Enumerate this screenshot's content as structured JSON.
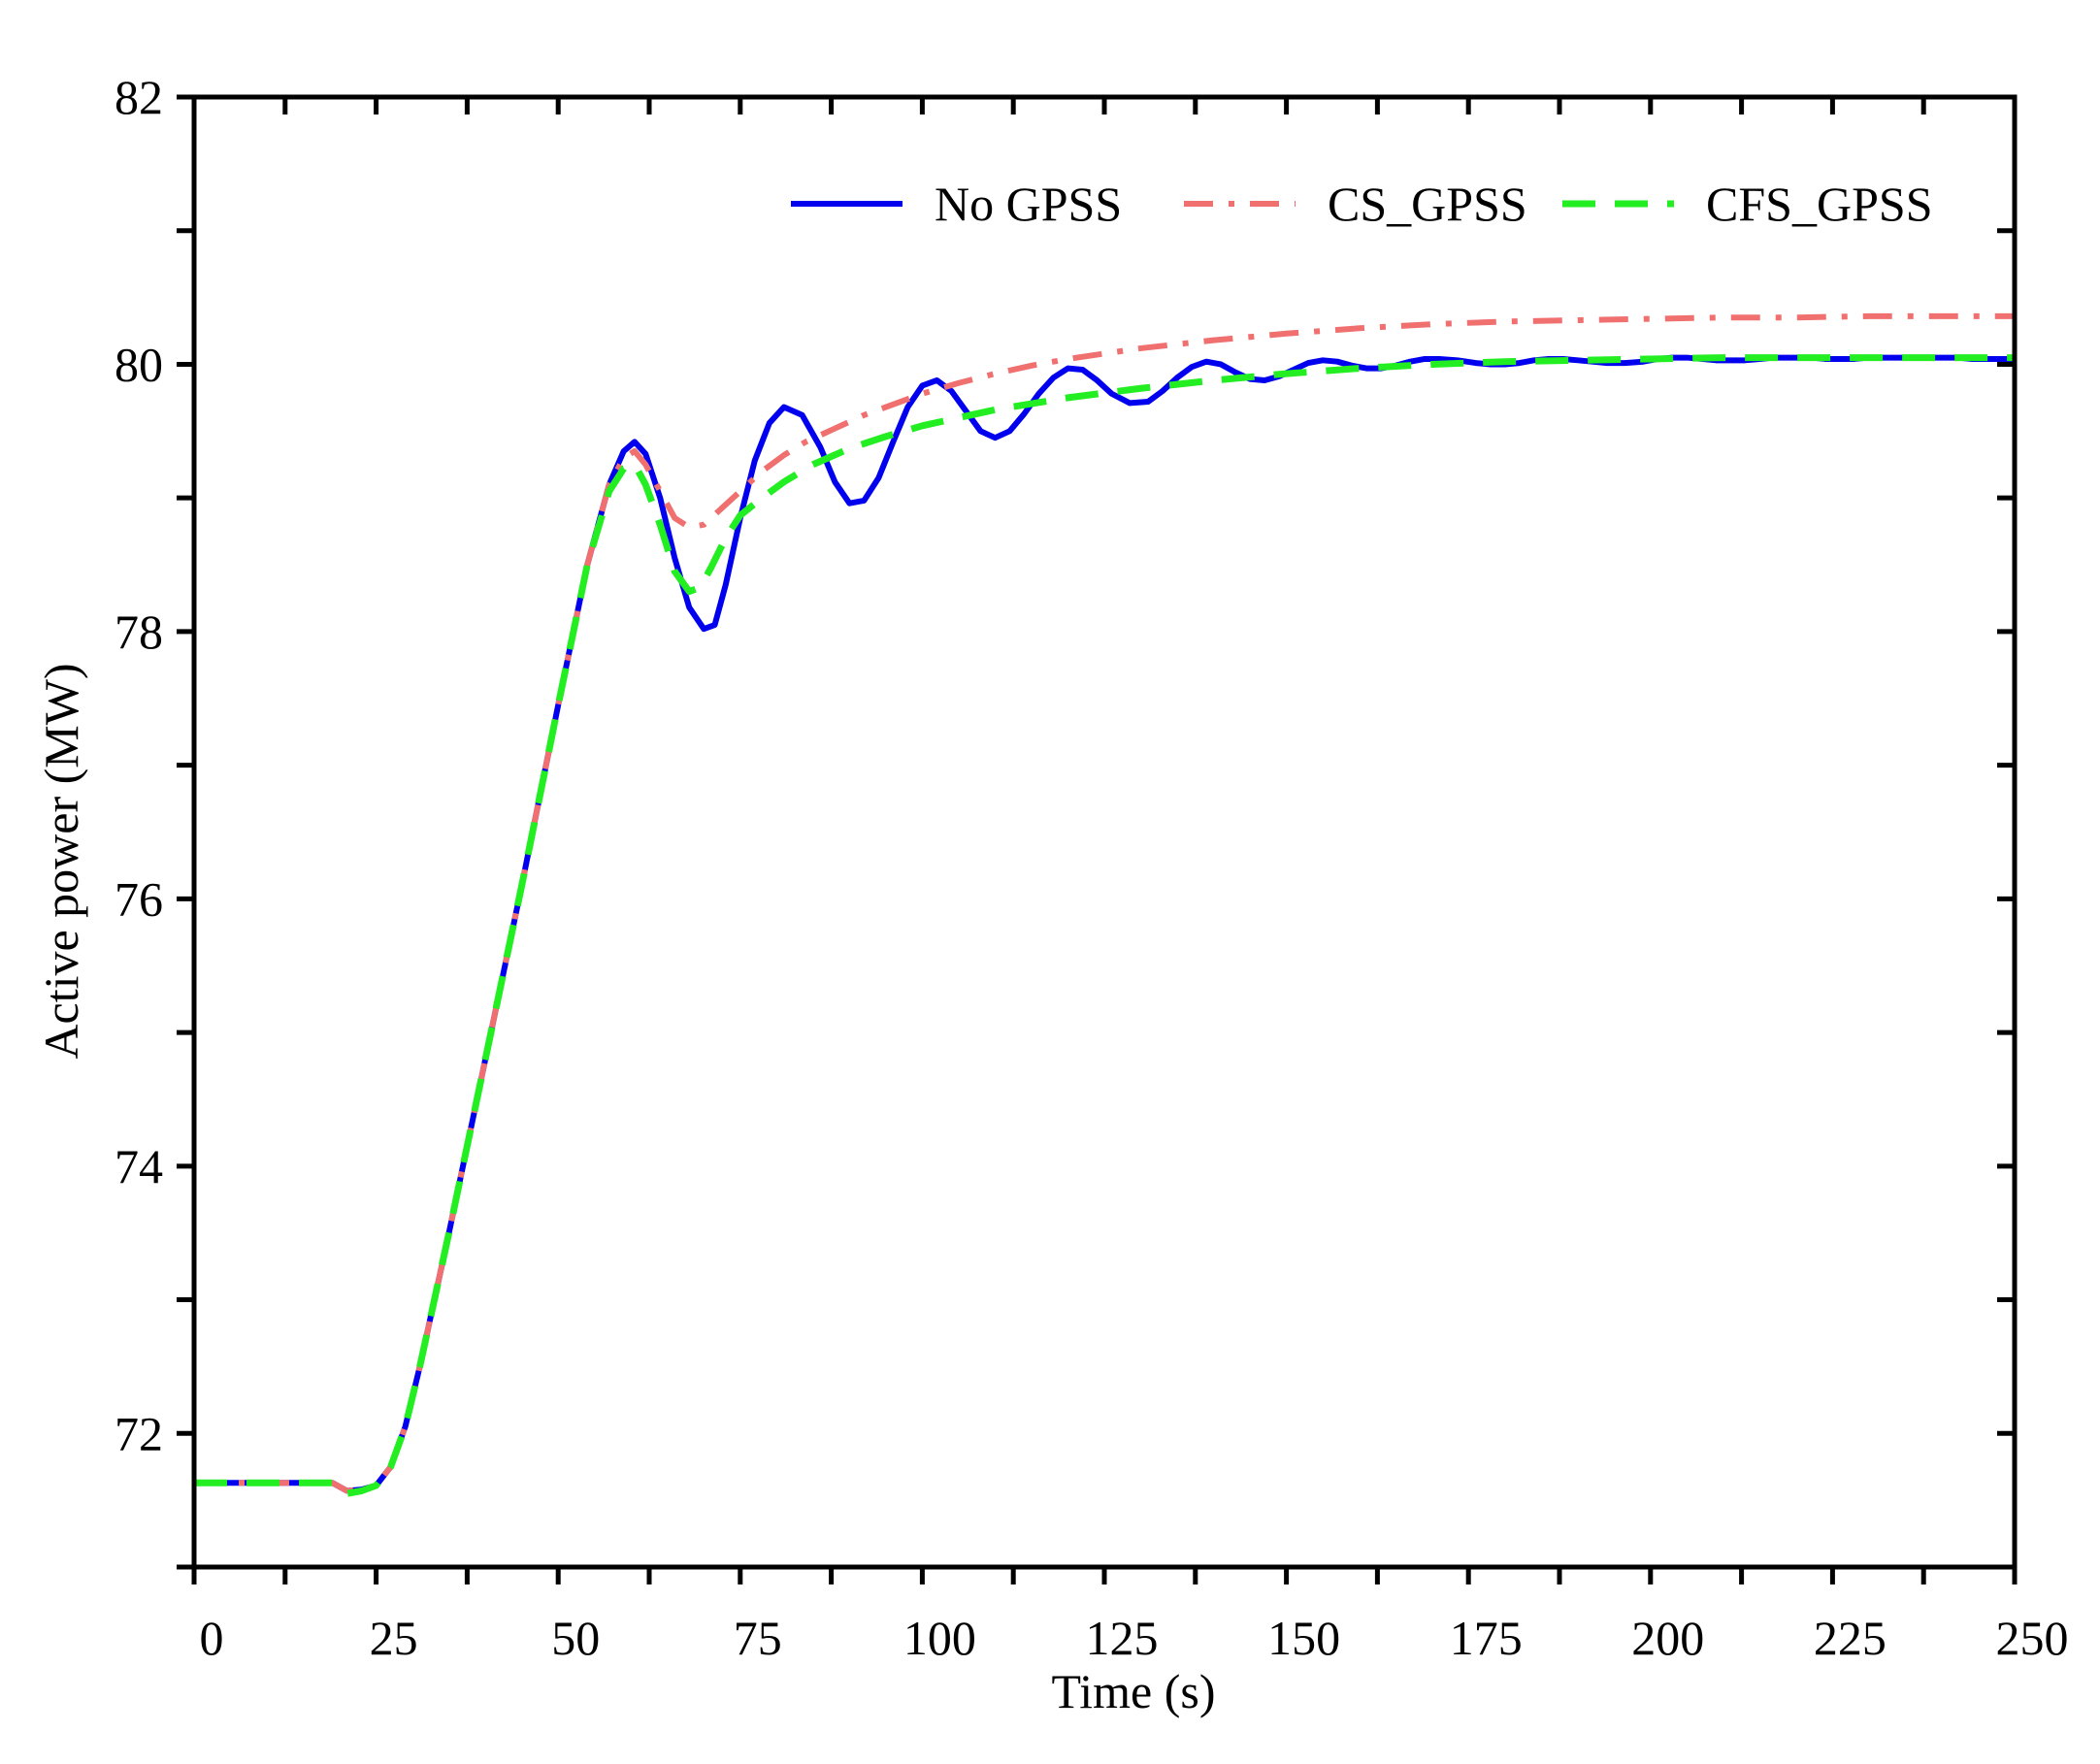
{
  "chart_data": {
    "type": "line",
    "title": "",
    "xlabel": "Time (s)",
    "ylabel": "Active power (MW)",
    "xlim": [
      0,
      250
    ],
    "ylim": [
      71,
      82
    ],
    "xticks": [
      0,
      25,
      50,
      75,
      100,
      125,
      150,
      175,
      200,
      225,
      250
    ],
    "xtick_labels": [
      "0",
      "25",
      "50",
      "75",
      "100",
      "125",
      "150",
      "175",
      "200",
      "225",
      "250"
    ],
    "yticks": [
      72,
      74,
      76,
      78,
      80,
      82
    ],
    "ytick_labels": [
      "72",
      "74",
      "76",
      "78",
      "80",
      "82"
    ],
    "grid": false,
    "legend_position": "top-right",
    "series": [
      {
        "name": "No GPSS",
        "color": "#0000ee",
        "style": "solid",
        "x": [
          0,
          19,
          20,
          21,
          23,
          25,
          27,
          29,
          31,
          35,
          40,
          45,
          50,
          54,
          57,
          59,
          60.5,
          62,
          64,
          66,
          68,
          70,
          71.5,
          73,
          75,
          77,
          79,
          81,
          83.5,
          86,
          88,
          90,
          92,
          94,
          96,
          98,
          100,
          102,
          104,
          106,
          108,
          110,
          112,
          114,
          116,
          118,
          120,
          122,
          124,
          126,
          128.5,
          131,
          133,
          135,
          137,
          139,
          141,
          143,
          145,
          147,
          149,
          151,
          153,
          155,
          157,
          159,
          161,
          163,
          165,
          167,
          169,
          171,
          173.5,
          176,
          178,
          180,
          182,
          184,
          186,
          188,
          190,
          192,
          194,
          196.5,
          199,
          201,
          203,
          205,
          207,
          209,
          211,
          213,
          215,
          217,
          219.5,
          222,
          224,
          226,
          228,
          230,
          232,
          234,
          236,
          238,
          240,
          242,
          244,
          246,
          248,
          250
        ],
        "y": [
          71.63,
          71.63,
          71.6,
          71.57,
          71.58,
          71.61,
          71.75,
          72.05,
          72.5,
          73.5,
          74.8,
          76.1,
          77.45,
          78.5,
          79.1,
          79.35,
          79.42,
          79.33,
          79.0,
          78.55,
          78.18,
          78.02,
          78.05,
          78.35,
          78.85,
          79.28,
          79.56,
          79.68,
          79.62,
          79.38,
          79.12,
          78.96,
          78.98,
          79.15,
          79.42,
          79.68,
          79.84,
          79.88,
          79.8,
          79.65,
          79.5,
          79.45,
          79.5,
          79.63,
          79.78,
          79.9,
          79.97,
          79.96,
          79.88,
          79.78,
          79.71,
          79.72,
          79.8,
          79.9,
          79.98,
          80.02,
          80.0,
          79.94,
          79.89,
          79.88,
          79.91,
          79.96,
          80.01,
          80.03,
          80.02,
          79.99,
          79.97,
          79.97,
          79.99,
          80.02,
          80.04,
          80.04,
          80.03,
          80.01,
          80.0,
          80.0,
          80.01,
          80.03,
          80.04,
          80.04,
          80.03,
          80.02,
          80.01,
          80.01,
          80.02,
          80.04,
          80.05,
          80.05,
          80.04,
          80.03,
          80.03,
          80.03,
          80.04,
          80.05,
          80.05,
          80.05,
          80.04,
          80.04,
          80.04,
          80.05,
          80.05,
          80.05,
          80.05,
          80.05,
          80.05,
          80.05,
          80.04,
          80.04,
          80.04,
          80.04
        ]
      },
      {
        "name": "CS_GPSS",
        "color": "#f07070",
        "style": "dashdot",
        "x": [
          0,
          19,
          20,
          21,
          23,
          25,
          27,
          29,
          31,
          35,
          40,
          45,
          50,
          54,
          57,
          59,
          60.5,
          62,
          64,
          66,
          68,
          70,
          72,
          75,
          78,
          81,
          84,
          88,
          92,
          96,
          100,
          105,
          110,
          115,
          120,
          125,
          130,
          140,
          150,
          160,
          170,
          180,
          190,
          200,
          210,
          220,
          230,
          240,
          250
        ],
        "y": [
          71.63,
          71.63,
          71.6,
          71.57,
          71.58,
          71.61,
          71.75,
          72.05,
          72.5,
          73.5,
          74.8,
          76.1,
          77.45,
          78.5,
          79.1,
          79.3,
          79.35,
          79.25,
          79.05,
          78.85,
          78.78,
          78.8,
          78.9,
          79.05,
          79.2,
          79.32,
          79.42,
          79.52,
          79.62,
          79.7,
          79.78,
          79.86,
          79.93,
          79.99,
          80.04,
          80.08,
          80.12,
          80.18,
          80.23,
          80.27,
          80.3,
          80.32,
          80.33,
          80.34,
          80.35,
          80.35,
          80.36,
          80.36,
          80.36
        ]
      },
      {
        "name": "CFS_GPSS",
        "color": "#22ee22",
        "style": "dashed",
        "x": [
          0,
          19,
          20,
          21,
          23,
          25,
          27,
          29,
          31,
          35,
          40,
          45,
          50,
          54,
          57,
          59,
          60.5,
          62,
          64,
          66,
          68,
          69.5,
          71,
          73,
          75,
          78,
          81,
          85,
          90,
          95,
          100,
          110,
          120,
          130,
          140,
          150,
          160,
          170,
          180,
          190,
          200,
          210,
          220,
          230,
          240,
          250
        ],
        "y": [
          71.63,
          71.63,
          71.58,
          71.55,
          71.57,
          71.61,
          71.75,
          72.05,
          72.5,
          73.5,
          74.8,
          76.1,
          77.45,
          78.5,
          79.05,
          79.22,
          79.25,
          79.1,
          78.8,
          78.45,
          78.3,
          78.33,
          78.48,
          78.7,
          78.87,
          79.0,
          79.12,
          79.25,
          79.37,
          79.46,
          79.54,
          79.66,
          79.75,
          79.82,
          79.88,
          79.93,
          79.97,
          80.0,
          80.02,
          80.03,
          80.04,
          80.05,
          80.05,
          80.05,
          80.05,
          80.05
        ]
      }
    ]
  }
}
